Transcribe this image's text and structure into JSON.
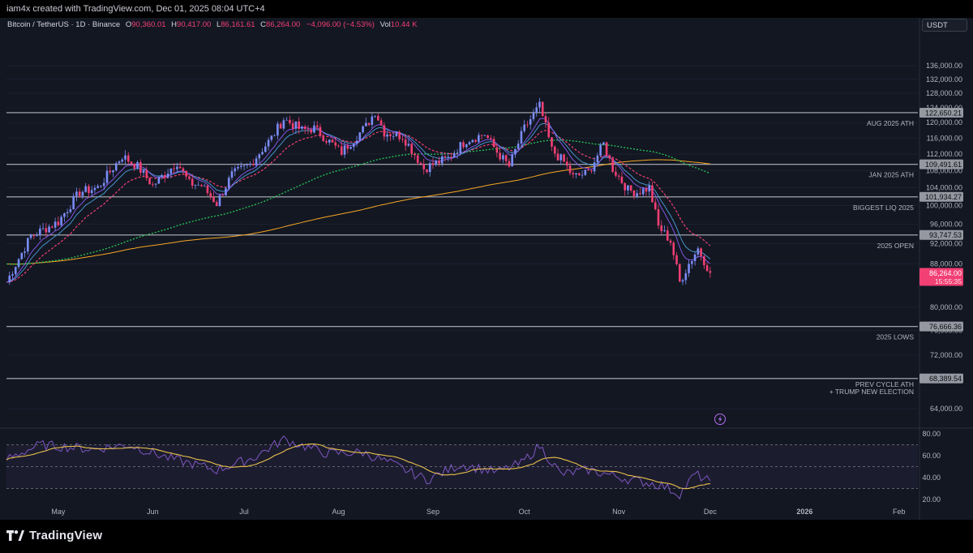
{
  "header": {
    "created_by": "iam4x created with TradingView.com, Dec 01, 2025 08:04 UTC+4"
  },
  "legend": {
    "symbol": "Bitcoin / TetherUS · 1D · Binance",
    "o_label": "O",
    "o_value": "90,360.01",
    "h_label": "H",
    "h_value": "90,417.00",
    "l_label": "L",
    "l_value": "86,161.61",
    "c_label": "C",
    "c_value": "86,264.00",
    "change": "−4,096.00 (−4.53%)",
    "vol_label": "Vol",
    "vol_value": "10.44 K"
  },
  "currency_button": "USDT",
  "branding": {
    "logo_text": "TradingView"
  },
  "colors": {
    "background": "#131722",
    "up_candle": "#7b8cf7",
    "down_candle": "#f23f74",
    "ema_fast": "#f23f74",
    "ema_mid": "#4a9fd8",
    "ema_slow": "#8a5cf6",
    "sma_long": "#26c957",
    "sma_longer": "#f5a623",
    "level_line": "#b2b5be",
    "rsi_line": "#7e57c2",
    "rsi_ma": "#e8c14a"
  },
  "chart_data": {
    "type": "candlestick",
    "symbol": "BTCUSDT",
    "timeframe": "1D",
    "exchange": "Binance",
    "ylim": [
      60000,
      140000
    ],
    "y_ticks": [
      "136,000.00",
      "132,000.00",
      "128,000.00",
      "124,000.00",
      "120,000.00",
      "116,000.00",
      "112,000.00",
      "108,000.00",
      "104,000.00",
      "100,000.00",
      "96,000.00",
      "92,000.00",
      "88,000.00",
      "80,000.00",
      "76,000.00",
      "72,000.00",
      "64,000.00"
    ],
    "x_ticks": [
      "May",
      "Jun",
      "Jul",
      "Aug",
      "Sep",
      "Oct",
      "Nov",
      "Dec",
      "2026",
      "Feb"
    ],
    "levels": [
      {
        "price": 122650.21,
        "tag": "122,650.21",
        "label": "AUG 2025 ATH"
      },
      {
        "price": 109491.61,
        "tag": "109,491.61",
        "label": "JAN 2025 ATH"
      },
      {
        "price": 101934.27,
        "tag": "101,934.27",
        "label": "BIGGEST LIQ 2025"
      },
      {
        "price": 93747.53,
        "tag": "93,747.53",
        "label": "2025 OPEN"
      },
      {
        "price": 76666.36,
        "tag": "76,666.36",
        "label": "2025 LOWS"
      },
      {
        "price": 68389.54,
        "tag": "68,389.54",
        "label_lines": [
          "PREV CYCLE ATH",
          "+ TRUMP NEW ELECTION"
        ]
      }
    ],
    "last_price": {
      "price": 86264,
      "tag": "86,264.00",
      "countdown": "15:55:35"
    },
    "close_path": [
      [
        "2025-04-14",
        84500
      ],
      [
        "2025-04-22",
        93500
      ],
      [
        "2025-05-01",
        96500
      ],
      [
        "2025-05-08",
        103000
      ],
      [
        "2025-05-14",
        104000
      ],
      [
        "2025-05-22",
        111500
      ],
      [
        "2025-05-27",
        109000
      ],
      [
        "2025-06-01",
        104500
      ],
      [
        "2025-06-09",
        110000
      ],
      [
        "2025-06-13",
        105000
      ],
      [
        "2025-06-17",
        104500
      ],
      [
        "2025-06-22",
        100500
      ],
      [
        "2025-06-27",
        107000
      ],
      [
        "2025-07-03",
        109500
      ],
      [
        "2025-07-10",
        116000
      ],
      [
        "2025-07-14",
        121000
      ],
      [
        "2025-07-20",
        118000
      ],
      [
        "2025-07-24",
        118500
      ],
      [
        "2025-08-01",
        113000
      ],
      [
        "2025-08-02",
        112500
      ],
      [
        "2025-08-10",
        119000
      ],
      [
        "2025-08-13",
        123000
      ],
      [
        "2025-08-16",
        117500
      ],
      [
        "2025-08-22",
        116500
      ],
      [
        "2025-08-29",
        108500
      ],
      [
        "2025-09-01",
        109500
      ],
      [
        "2025-09-06",
        111000
      ],
      [
        "2025-09-12",
        115500
      ],
      [
        "2025-09-18",
        117000
      ],
      [
        "2025-09-22",
        112500
      ],
      [
        "2025-09-26",
        109000
      ],
      [
        "2025-10-01",
        118500
      ],
      [
        "2025-10-06",
        124500
      ],
      [
        "2025-10-10",
        113000
      ],
      [
        "2025-10-14",
        110000
      ],
      [
        "2025-10-17",
        106500
      ],
      [
        "2025-10-22",
        107500
      ],
      [
        "2025-10-27",
        114500
      ],
      [
        "2025-10-30",
        108500
      ],
      [
        "2025-11-04",
        103500
      ],
      [
        "2025-11-07",
        103000
      ],
      [
        "2025-11-11",
        104000
      ],
      [
        "2025-11-14",
        95500
      ],
      [
        "2025-11-18",
        92500
      ],
      [
        "2025-11-21",
        84500
      ],
      [
        "2025-11-24",
        88000
      ],
      [
        "2025-11-27",
        91000
      ],
      [
        "2025-12-01",
        86264
      ]
    ],
    "rsi": {
      "ylim": [
        20,
        85
      ],
      "y_ticks": [
        "80.00",
        "60.00",
        "40.00",
        "20.00"
      ],
      "bands": [
        70,
        50,
        30
      ],
      "path": [
        [
          "2025-04-14",
          57
        ],
        [
          "2025-04-25",
          70
        ],
        [
          "2025-05-12",
          66
        ],
        [
          "2025-05-24",
          70
        ],
        [
          "2025-06-06",
          58
        ],
        [
          "2025-06-22",
          47
        ],
        [
          "2025-07-04",
          58
        ],
        [
          "2025-07-14",
          75
        ],
        [
          "2025-07-28",
          62
        ],
        [
          "2025-08-09",
          63
        ],
        [
          "2025-08-19",
          52
        ],
        [
          "2025-08-30",
          38
        ],
        [
          "2025-09-10",
          52
        ],
        [
          "2025-09-22",
          45
        ],
        [
          "2025-09-30",
          53
        ],
        [
          "2025-10-06",
          69
        ],
        [
          "2025-10-13",
          43
        ],
        [
          "2025-10-22",
          47
        ],
        [
          "2025-11-05",
          38
        ],
        [
          "2025-11-15",
          33
        ],
        [
          "2025-11-21",
          25
        ],
        [
          "2025-11-26",
          43
        ],
        [
          "2025-12-01",
          37
        ]
      ]
    }
  }
}
